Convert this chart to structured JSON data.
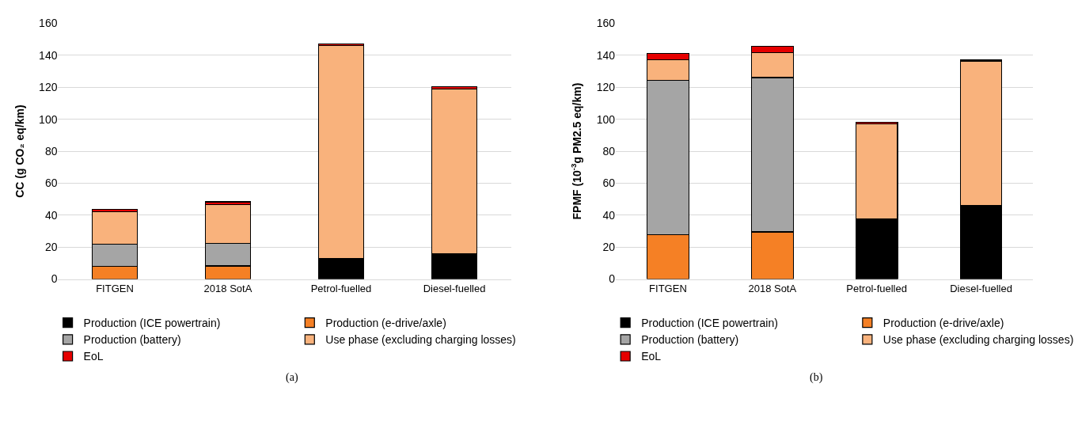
{
  "chart_data": [
    {
      "type": "bar",
      "stacked": true,
      "ylabel": "CC (g CO₂ eq/km)",
      "categories": [
        "FITGEN",
        "2018 SotA",
        "Petrol-fuelled",
        "Diesel-fuelled"
      ],
      "ylim": [
        0,
        160
      ],
      "yticks": [
        0,
        20,
        40,
        60,
        80,
        100,
        120,
        140,
        160
      ],
      "grid": "y",
      "legend": "bottom",
      "annotations": [
        "(a)"
      ],
      "series": [
        {
          "name": "Production (ICE powertrain)",
          "color": "#000000",
          "values": [
            null,
            null,
            12.6,
            15.7
          ]
        },
        {
          "name": "Production (e-drive/axle)",
          "color": "#f58025",
          "values": [
            8,
            8.2,
            null,
            null
          ]
        },
        {
          "name": "Production (battery)",
          "color": "#a5a5a5",
          "values": [
            14,
            14,
            null,
            null
          ]
        },
        {
          "name": "Use phase (excluding charging losses)",
          "color": "#f9b27c",
          "values": [
            20,
            24.4,
            133.4,
            103.4
          ]
        },
        {
          "name": "EoL",
          "color": "#e60000",
          "values": [
            1.5,
            1.7,
            1.2,
            1.2
          ]
        }
      ]
    },
    {
      "type": "bar",
      "stacked": true,
      "ylabel": "FPMF (10$^{-3}$g PM2.5 eq/km)",
      "categories": [
        "FITGEN",
        "2018 SotA",
        "Petrol-fuelled",
        "Diesel-fuelled"
      ],
      "ylim": [
        0,
        160
      ],
      "yticks": [
        0,
        20,
        40,
        60,
        80,
        100,
        120,
        140,
        160
      ],
      "grid": "y",
      "legend": "bottom",
      "annotations": [
        "(b)"
      ],
      "series": [
        {
          "name": "Production (ICE powertrain)",
          "color": "#000000",
          "values": [
            null,
            null,
            37.4,
            45.9
          ]
        },
        {
          "name": "Production (e-drive/axle)",
          "color": "#f58025",
          "values": [
            27.8,
            29.5,
            null,
            null
          ]
        },
        {
          "name": "Production (battery)",
          "color": "#a5a5a5",
          "values": [
            96.5,
            96.6,
            null,
            null
          ]
        },
        {
          "name": "Use phase (excluding charging losses)",
          "color": "#f9b27c",
          "values": [
            13,
            15.8,
            59.9,
            90.6
          ]
        },
        {
          "name": "EoL",
          "color": "#e60000",
          "values": [
            4,
            3.8,
            0.8,
            0.8
          ]
        }
      ]
    }
  ]
}
